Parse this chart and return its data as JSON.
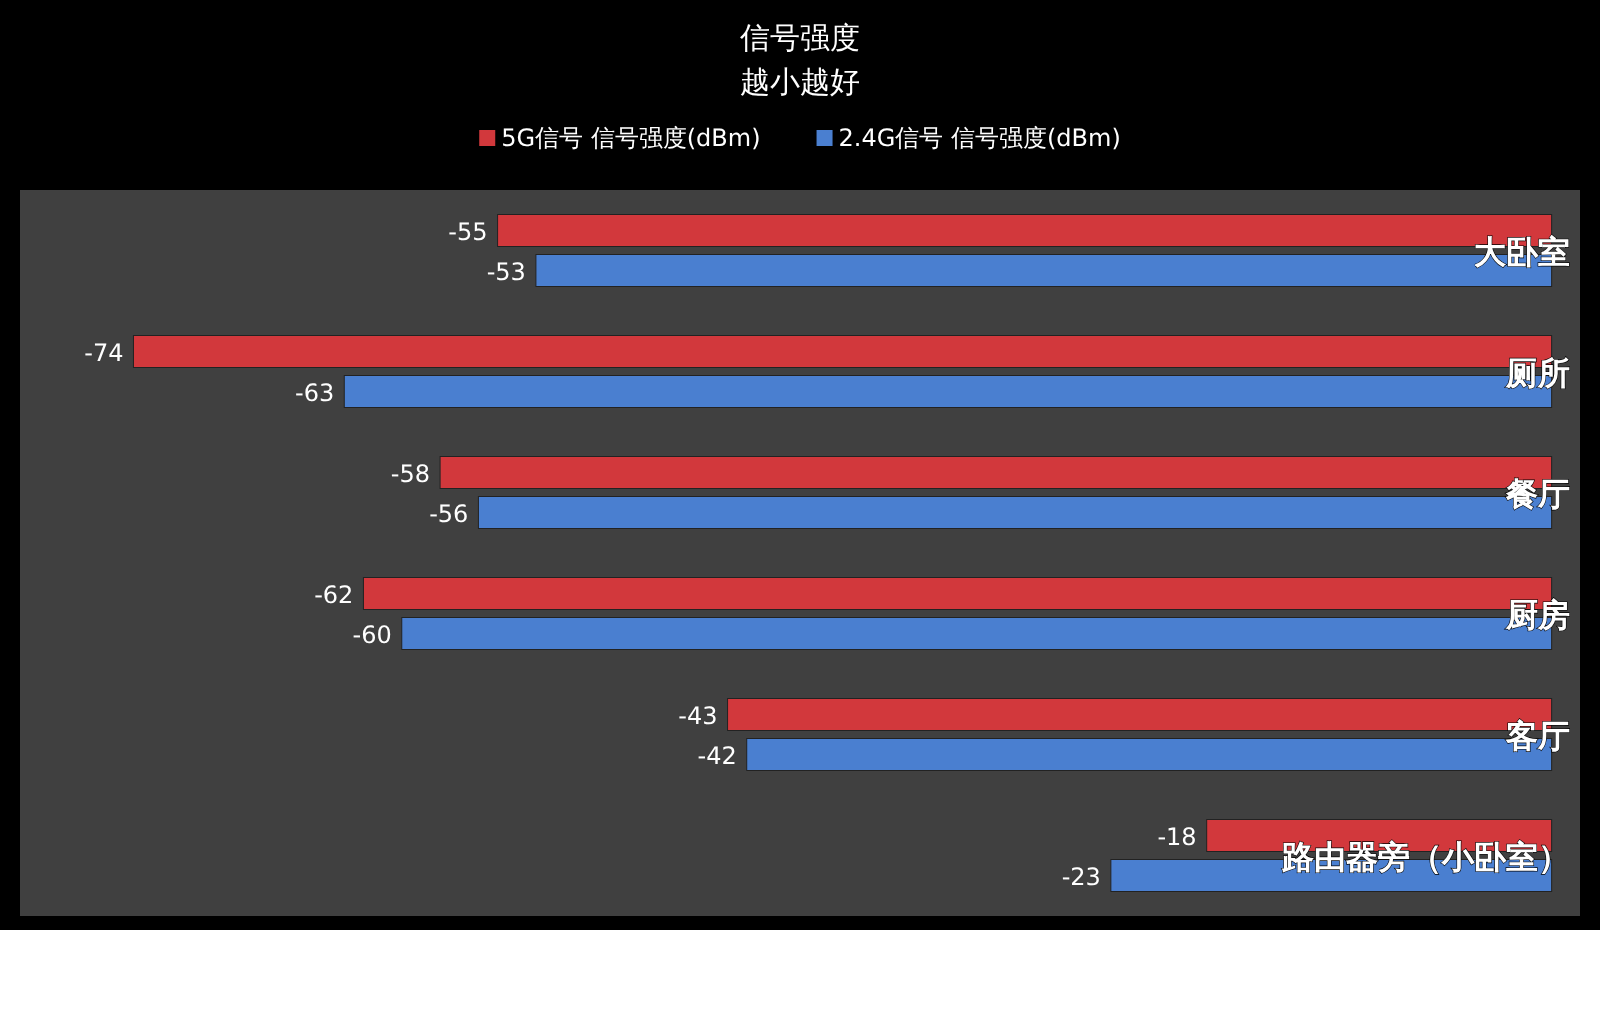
{
  "chart_data": {
    "type": "bar",
    "orientation": "horizontal",
    "title": "信号强度",
    "subtitle": "越小越好",
    "categories": [
      "大卧室",
      "厕所",
      "餐厅",
      "厨房",
      "客厅",
      "路由器旁（小卧室）"
    ],
    "series": [
      {
        "name": "5G信号 信号强度(dBm)",
        "color": "#d2383c",
        "values": [
          -55,
          -74,
          -58,
          -62,
          -43,
          -18
        ]
      },
      {
        "name": "2.4G信号 信号强度(dBm)",
        "color": "#4a7fd0",
        "values": [
          -53,
          -63,
          -56,
          -60,
          -42,
          -23
        ]
      }
    ],
    "data_labels": true,
    "legend": "top"
  }
}
